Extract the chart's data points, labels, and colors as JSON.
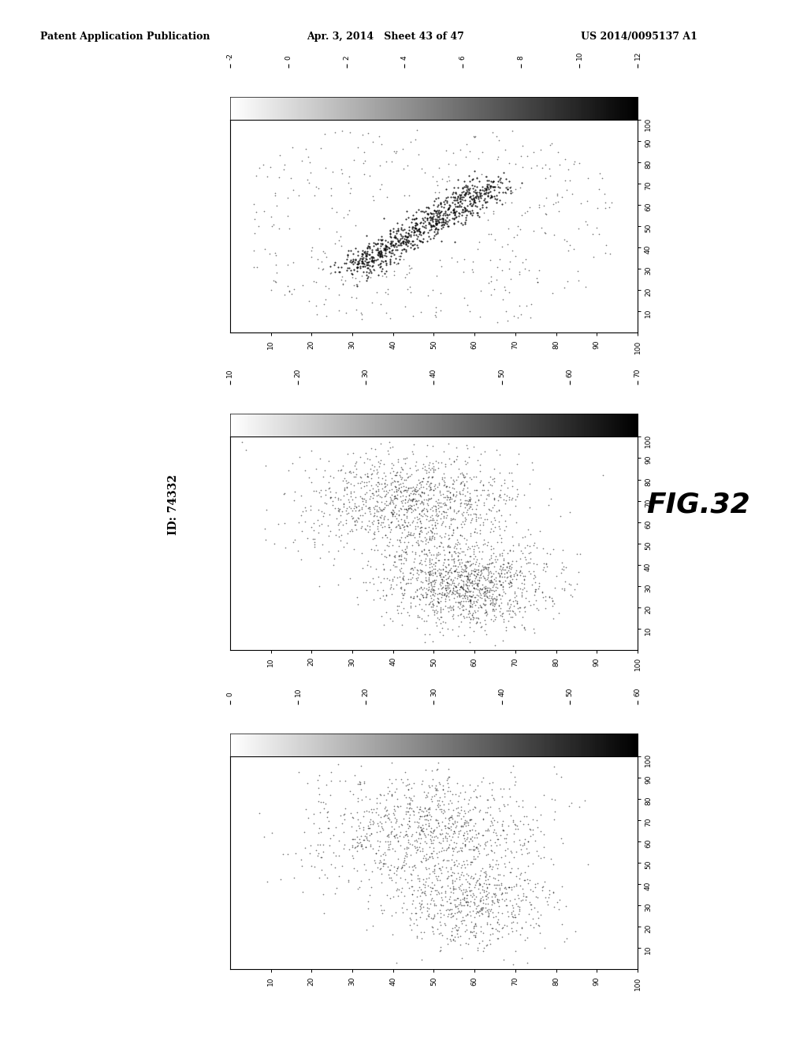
{
  "header_left": "Patent Application Publication",
  "header_mid": "Apr. 3, 2014   Sheet 43 of 47",
  "header_right": "US 2014/0095137 A1",
  "fig_label": "FIG.32",
  "id_label": "ID: 74332",
  "background": "#ffffff",
  "plot_bg": "#ffffff",
  "colorbar1_ticks": [
    -2,
    0,
    2,
    4,
    6,
    8,
    10,
    12
  ],
  "colorbar2_ticks": [
    70,
    60,
    50,
    40,
    30,
    20,
    10
  ],
  "colorbar3_ticks": [
    0,
    10,
    20,
    30,
    40,
    50,
    60
  ],
  "axis_ticks": [
    10,
    20,
    30,
    40,
    50,
    60,
    70,
    80,
    90,
    100
  ],
  "seed1": 42,
  "seed2": 123,
  "seed3": 789
}
